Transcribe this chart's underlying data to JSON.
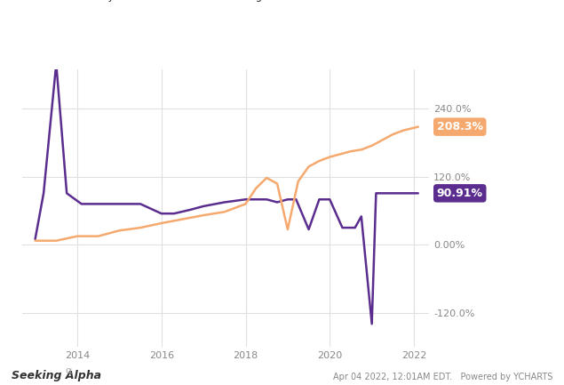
{
  "rc_x": [
    2013.0,
    2013.2,
    2013.5,
    2013.75,
    2014.1,
    2015.0,
    2015.5,
    2016.0,
    2016.3,
    2016.7,
    2017.0,
    2017.5,
    2018.0,
    2018.5,
    2018.75,
    2019.0,
    2019.2,
    2019.5,
    2019.75,
    2020.0,
    2020.3,
    2020.6,
    2020.75,
    2021.0,
    2021.1,
    2021.3,
    2021.5,
    2021.75,
    2022.1
  ],
  "rc_y": [
    10.0,
    90.91,
    320.0,
    90.91,
    72.0,
    72.0,
    72.0,
    55.0,
    55.0,
    62.0,
    68.0,
    75.0,
    80.0,
    80.0,
    75.0,
    80.0,
    80.0,
    27.0,
    80.0,
    80.0,
    30.0,
    30.0,
    50.0,
    -140.0,
    90.91,
    90.91,
    90.91,
    90.91,
    90.91
  ],
  "abr_x": [
    2013.0,
    2013.5,
    2014.0,
    2014.5,
    2015.0,
    2015.5,
    2016.0,
    2016.5,
    2017.0,
    2017.5,
    2018.0,
    2018.25,
    2018.5,
    2018.75,
    2019.0,
    2019.25,
    2019.5,
    2019.75,
    2020.0,
    2020.5,
    2020.75,
    2021.0,
    2021.5,
    2021.75,
    2022.1
  ],
  "abr_y": [
    7.0,
    7.0,
    15.0,
    15.0,
    25.0,
    30.0,
    38.0,
    45.0,
    52.0,
    58.0,
    72.0,
    100.0,
    118.0,
    108.0,
    27.0,
    112.0,
    138.0,
    148.0,
    155.0,
    165.0,
    168.0,
    175.0,
    195.0,
    202.0,
    208.3
  ],
  "rc_color": "#5b2d8e",
  "abr_color": "#f5a96e",
  "rc_end_label": "90.91%",
  "abr_end_label": "208.3%",
  "rc_end_color": "#5b2d8e",
  "abr_end_color": "#f5a96e",
  "ylim": [
    -180.0,
    310.0
  ],
  "yticks": [
    -120.0,
    0.0,
    120.0,
    240.0
  ],
  "ytick_labels": [
    "-120.0%",
    "0.00%",
    "120.0%",
    "240.0%"
  ],
  "xlim": [
    2012.7,
    2022.35
  ],
  "xticks": [
    2014,
    2016,
    2018,
    2020,
    2022
  ],
  "background_color": "#ffffff",
  "grid_color": "#e0e0e0",
  "footer_left": "Seeking Alpha",
  "footer_alpha": "α",
  "footer_right": "Apr 04 2022, 12:01AM EDT.   Powered by YCHARTS"
}
